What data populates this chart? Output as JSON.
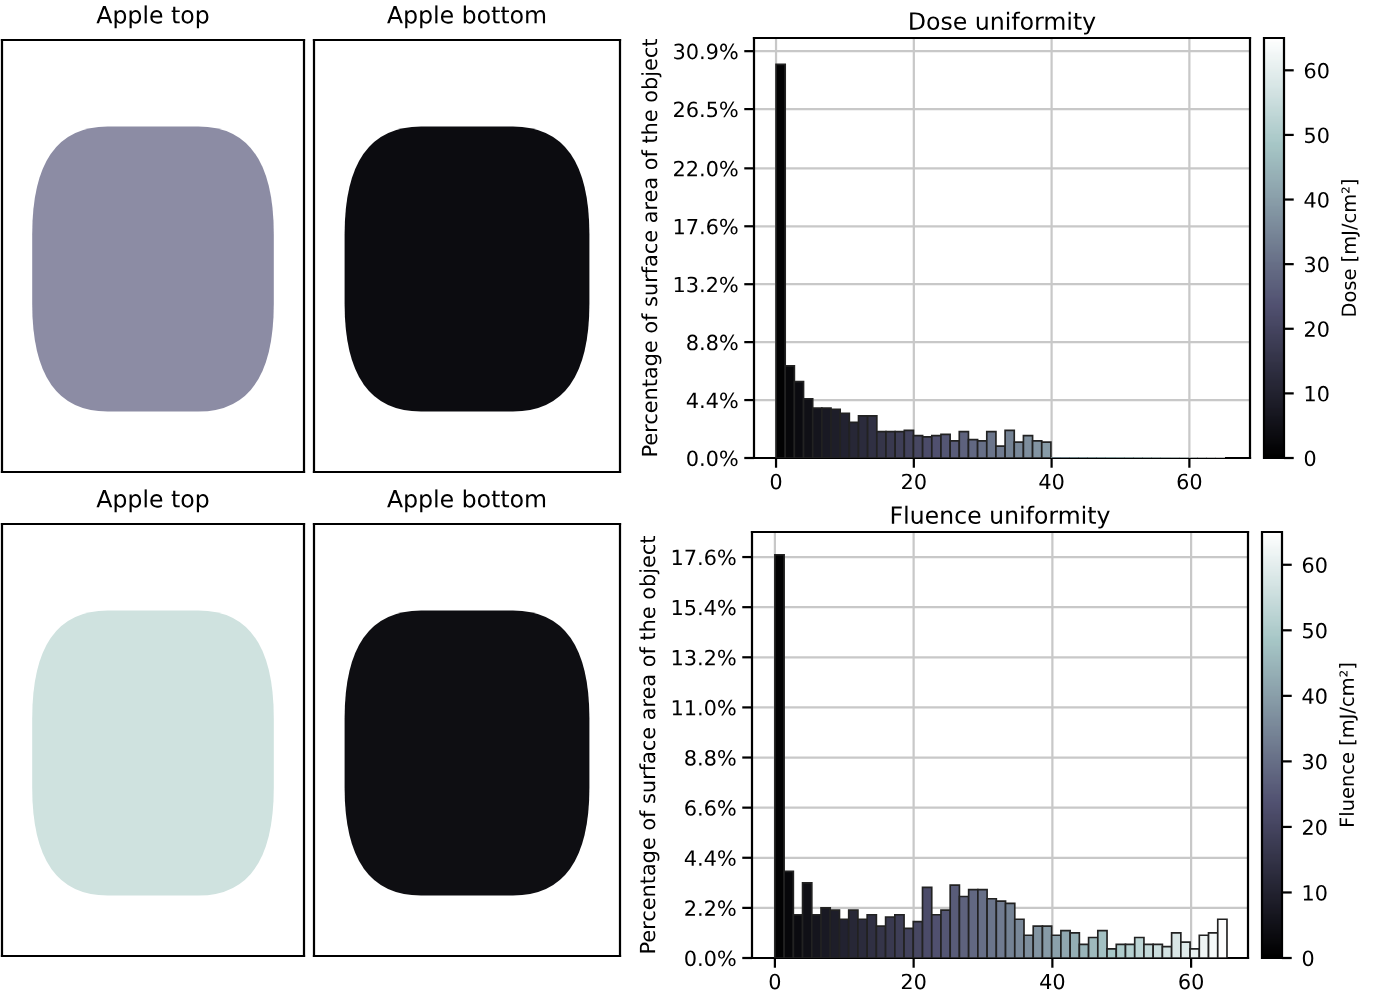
{
  "chart_data": [
    {
      "type": "other",
      "title": "Apple top"
    },
    {
      "type": "other",
      "title": "Apple bottom"
    },
    {
      "type": "histogram",
      "title": "Dose uniformity",
      "ylabel": "Percentage of surface area of the object",
      "clabel": "Dose [mJ/cm²]",
      "bins": [
        0,
        1.33,
        2.66,
        3.99,
        5.32,
        6.65,
        7.98,
        9.31,
        10.64,
        11.97,
        13.3,
        14.63,
        15.96,
        17.29,
        18.62,
        19.95,
        21.28,
        22.61,
        23.94,
        25.27,
        26.6,
        27.93,
        29.26,
        30.59,
        31.92,
        33.25,
        34.58,
        35.91,
        37.24,
        38.57,
        39.9,
        41.23,
        42.56,
        43.89,
        45.22,
        46.55,
        47.88,
        49.21,
        50.54,
        51.87,
        53.2,
        54.53,
        55.86,
        57.19,
        58.52,
        59.85,
        61.18,
        62.51,
        63.84,
        65.17
      ],
      "values": [
        29.9,
        7.0,
        5.8,
        4.5,
        3.8,
        3.8,
        3.7,
        3.4,
        2.7,
        3.2,
        3.2,
        2.0,
        2.0,
        2.0,
        2.1,
        1.7,
        1.6,
        1.7,
        1.8,
        1.3,
        2.0,
        1.4,
        1.3,
        2.0,
        0.9,
        2.1,
        1.2,
        1.7,
        1.3,
        1.2,
        0,
        0,
        0,
        0,
        0,
        0,
        0,
        0,
        0,
        0,
        0,
        0,
        0,
        0,
        0,
        0,
        0,
        0,
        0
      ],
      "colors": [
        "#020203",
        "#07070a",
        "#0b0b10",
        "#101016",
        "#15151d",
        "#191923",
        "#1e1e29",
        "#222230",
        "#272736",
        "#2b2b3c",
        "#303043",
        "#353549",
        "#39394f",
        "#3e3e56",
        "#42425c",
        "#474762",
        "#4b4b69",
        "#50506f",
        "#545674",
        "#595c79",
        "#5e627d",
        "#626882",
        "#676f87",
        "#6b758b",
        "#707b90",
        "#748294",
        "#798899",
        "#7e8e9d",
        "#8294a2",
        "#879ba7",
        "#8ba1ab",
        "#90a7b0",
        "#94aeb4",
        "#99b4b9",
        "#9ebabd",
        "#a2c0c2",
        "#a7c7c7",
        "#aecbcb",
        "#b5d0d0",
        "#bcd4d4",
        "#c3d9d9",
        "#cadddd",
        "#d2e2e2",
        "#d9e6e6",
        "#e0ebeb",
        "#e7f0f0",
        "#eef4f4",
        "#f5f9f9",
        "#fcfdfd"
      ],
      "xlim": [
        -3.2,
        68.8
      ],
      "xticks": [
        0,
        20,
        40,
        60
      ],
      "ylim": [
        0,
        31.9
      ],
      "yticks": [
        {
          "value": 0,
          "label": "0.0%"
        },
        {
          "value": 4.4,
          "label": "4.4%"
        },
        {
          "value": 8.8,
          "label": "8.8%"
        },
        {
          "value": 13.2,
          "label": "13.2%"
        },
        {
          "value": 17.6,
          "label": "17.6%"
        },
        {
          "value": 22.0,
          "label": "22.0%"
        },
        {
          "value": 26.5,
          "label": "26.5%"
        },
        {
          "value": 30.9,
          "label": "30.9%"
        }
      ],
      "clim": [
        0,
        65
      ],
      "cticks": [
        0,
        10,
        20,
        30,
        40,
        50,
        60
      ],
      "grid": true
    },
    {
      "type": "other",
      "title": "Apple top"
    },
    {
      "type": "other",
      "title": "Apple bottom"
    },
    {
      "type": "histogram",
      "title": "Fluence uniformity",
      "ylabel": "Percentage of surface area of the object",
      "clabel": "Fluence [mJ/cm²]",
      "bins": [
        0,
        1.33,
        2.66,
        3.99,
        5.32,
        6.65,
        7.98,
        9.31,
        10.64,
        11.97,
        13.3,
        14.63,
        15.96,
        17.29,
        18.62,
        19.95,
        21.28,
        22.61,
        23.94,
        25.27,
        26.6,
        27.93,
        29.26,
        30.59,
        31.92,
        33.25,
        34.58,
        35.91,
        37.24,
        38.57,
        39.9,
        41.23,
        42.56,
        43.89,
        45.22,
        46.55,
        47.88,
        49.21,
        50.54,
        51.87,
        53.2,
        54.53,
        55.86,
        57.19,
        58.52,
        59.85,
        61.18,
        62.51,
        63.84,
        65.17
      ],
      "values": [
        17.7,
        3.8,
        1.9,
        3.3,
        1.9,
        2.2,
        2.1,
        1.7,
        2.1,
        1.7,
        1.9,
        1.4,
        1.8,
        1.9,
        1.3,
        1.6,
        3.1,
        1.9,
        2.1,
        3.2,
        2.7,
        3.0,
        3.0,
        2.6,
        2.5,
        2.4,
        1.7,
        1.0,
        1.4,
        1.4,
        1.0,
        1.2,
        1.1,
        0.6,
        0.9,
        1.2,
        0.4,
        0.6,
        0.6,
        0.9,
        0.6,
        0.6,
        0.5,
        1.1,
        0.7,
        0.4,
        1.0,
        1.1,
        1.7
      ],
      "colors": [
        "#020203",
        "#07070a",
        "#0b0b10",
        "#101016",
        "#15151d",
        "#191923",
        "#1e1e29",
        "#222230",
        "#272736",
        "#2b2b3c",
        "#303043",
        "#353549",
        "#39394f",
        "#3e3e56",
        "#42425c",
        "#474762",
        "#4b4b69",
        "#50506f",
        "#545674",
        "#595c79",
        "#5e627d",
        "#626882",
        "#676f87",
        "#6b758b",
        "#707b90",
        "#748294",
        "#798899",
        "#7e8e9d",
        "#8294a2",
        "#879ba7",
        "#8ba1ab",
        "#90a7b0",
        "#94aeb4",
        "#99b4b9",
        "#9ebabd",
        "#a2c0c2",
        "#a7c7c7",
        "#aecbcb",
        "#b5d0d0",
        "#bcd4d4",
        "#c3d9d9",
        "#cadddd",
        "#d2e2e2",
        "#d9e6e6",
        "#e0ebeb",
        "#e7f0f0",
        "#eef4f4",
        "#f5f9f9",
        "#fcfdfd"
      ],
      "xlim": [
        -3.3,
        68.2
      ],
      "xticks": [
        0,
        20,
        40,
        60
      ],
      "ylim": [
        0,
        18.7
      ],
      "yticks": [
        {
          "value": 0,
          "label": "0.0%"
        },
        {
          "value": 2.2,
          "label": "2.2%"
        },
        {
          "value": 4.4,
          "label": "4.4%"
        },
        {
          "value": 6.6,
          "label": "6.6%"
        },
        {
          "value": 8.8,
          "label": "8.8%"
        },
        {
          "value": 11.0,
          "label": "11.0%"
        },
        {
          "value": 13.2,
          "label": "13.2%"
        },
        {
          "value": 15.4,
          "label": "15.4%"
        },
        {
          "value": 17.6,
          "label": "17.6%"
        }
      ],
      "clim": [
        0,
        65
      ],
      "cticks": [
        0,
        10,
        20,
        30,
        40,
        50,
        60
      ],
      "grid": true
    }
  ]
}
